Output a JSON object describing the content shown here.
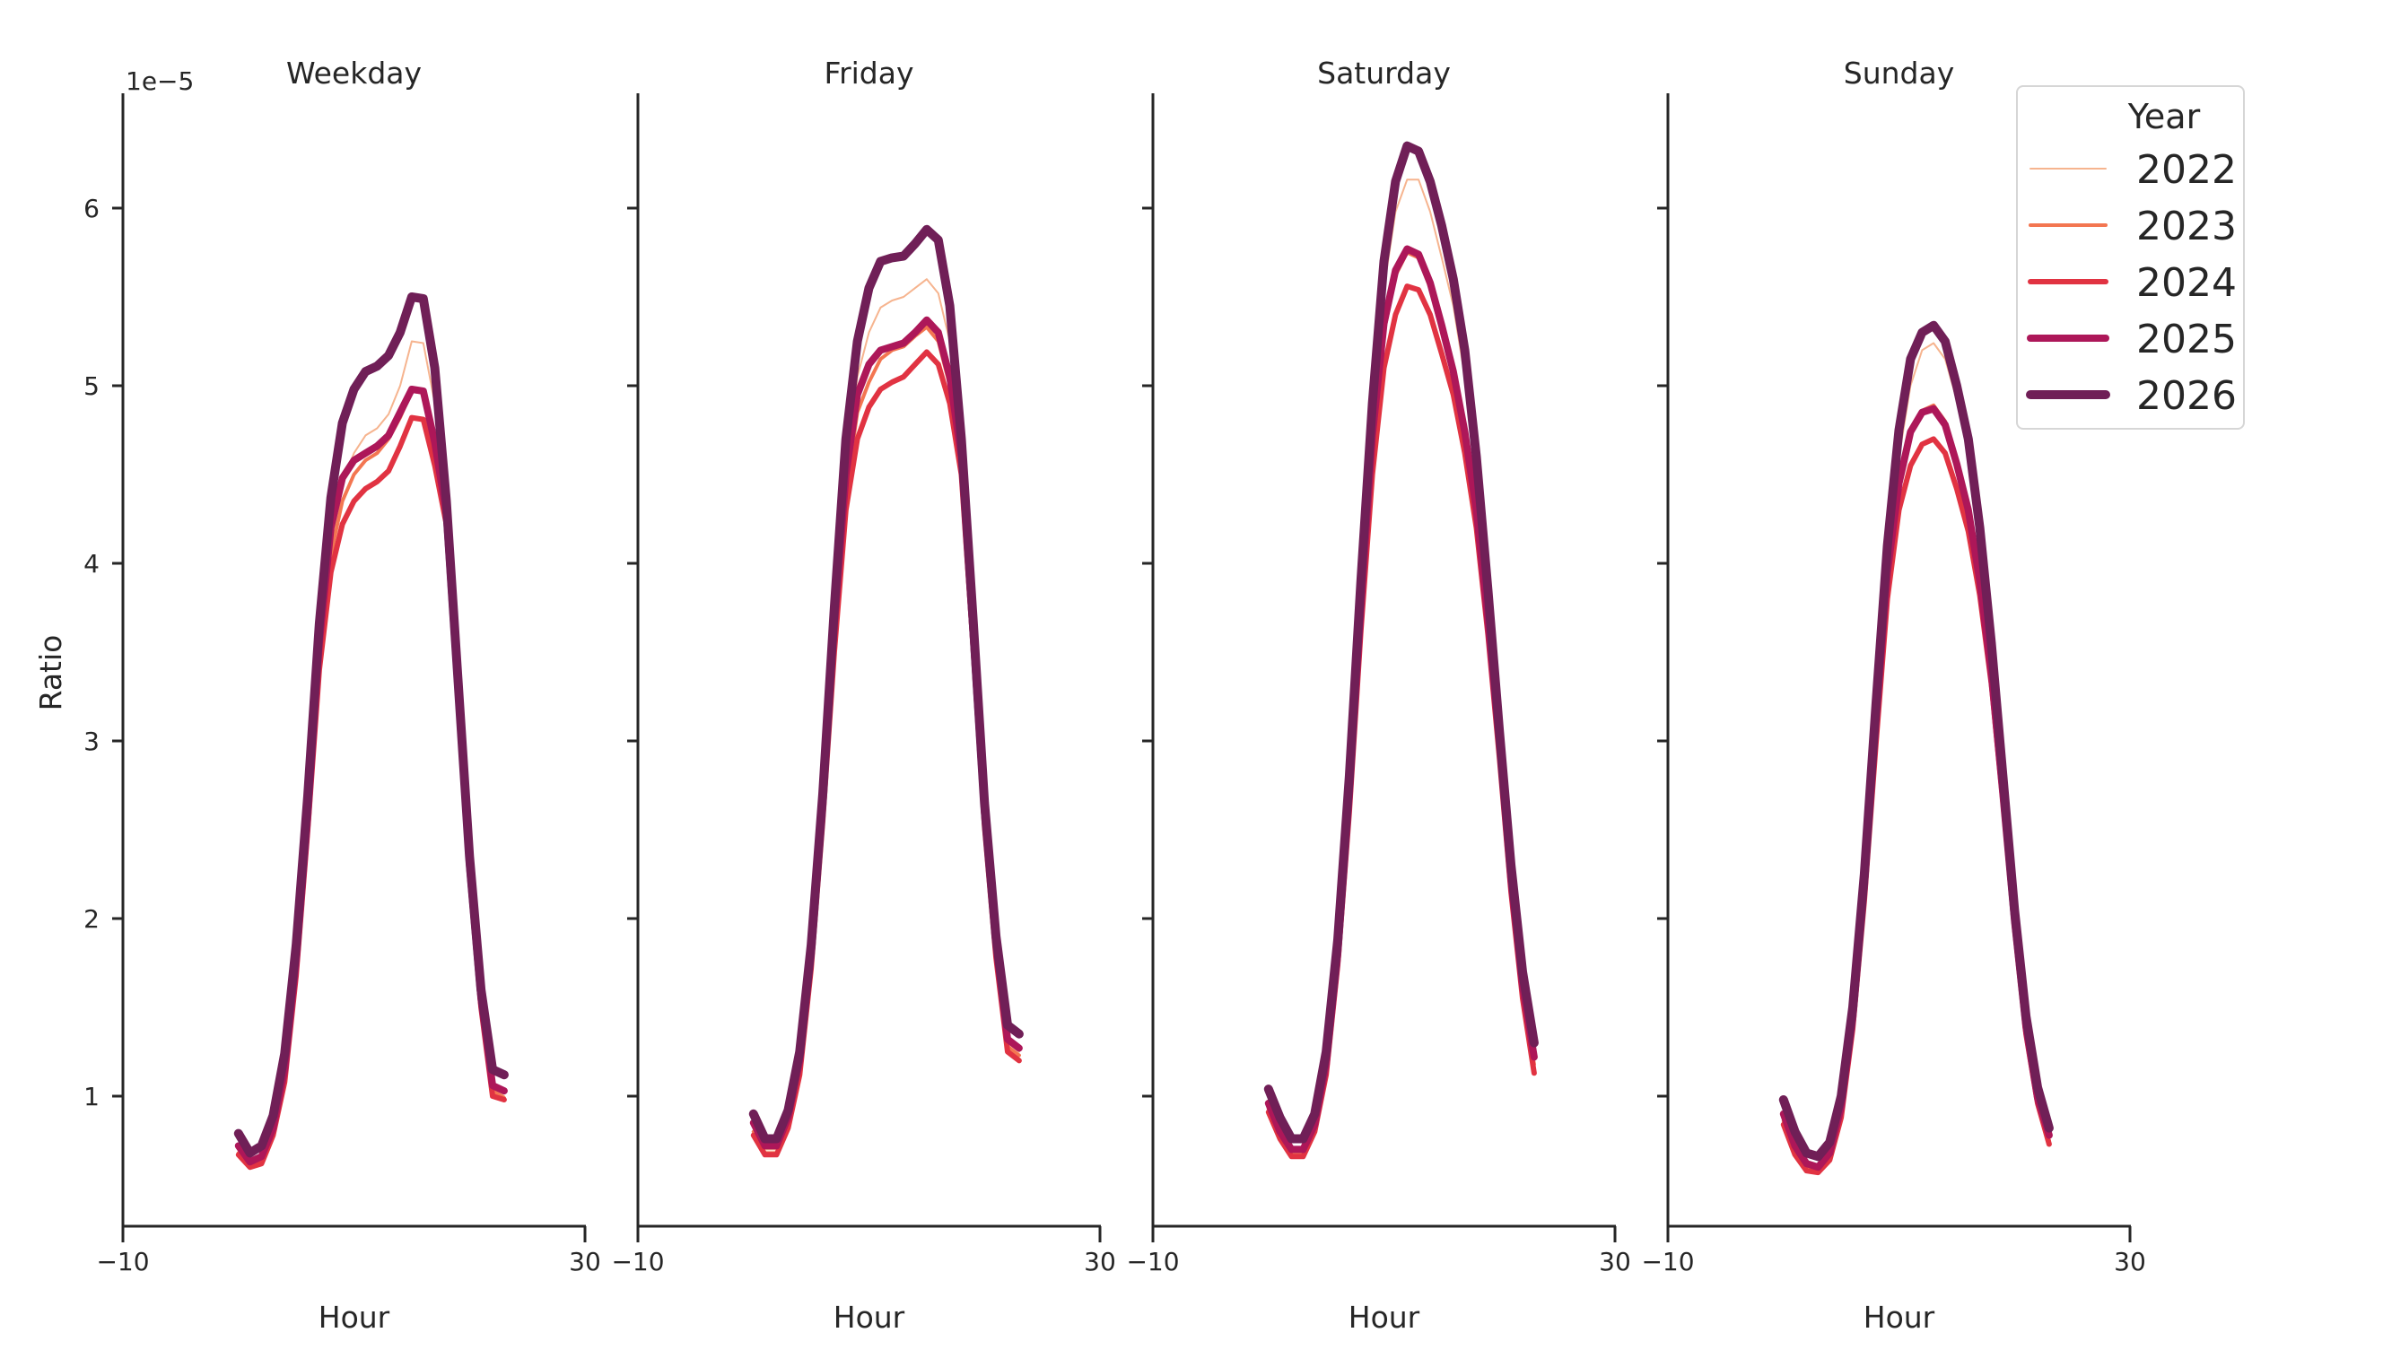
{
  "chart_data": {
    "type": "line",
    "layout": "facet-columns",
    "ylabel": "Ratio",
    "xlabel": "Hour",
    "y_offset_label": "1e−5",
    "y_scale_factor": 1e-05,
    "xlim": [
      -10,
      30
    ],
    "ylim": [
      0.27,
      6.65
    ],
    "xticks": [
      -10,
      30
    ],
    "yticks": [
      1,
      2,
      3,
      4,
      5,
      6
    ],
    "grid": false,
    "legend": {
      "title": "Year",
      "position": "upper right",
      "entries": [
        {
          "label": "2022",
          "color": "#f6b48f",
          "width": 2
        },
        {
          "label": "2023",
          "color": "#f37651",
          "width": 4
        },
        {
          "label": "2024",
          "color": "#e13342",
          "width": 6
        },
        {
          "label": "2025",
          "color": "#ad1759",
          "width": 8
        },
        {
          "label": "2026",
          "color": "#701f57",
          "width": 10
        }
      ]
    },
    "x": [
      0,
      1,
      2,
      3,
      4,
      5,
      6,
      7,
      8,
      9,
      10,
      11,
      12,
      13,
      14,
      15,
      16,
      17,
      18,
      19,
      20,
      21,
      22,
      23
    ],
    "panels": [
      {
        "title": "Weekday",
        "series": [
          {
            "name": "2022",
            "values": [
              0.7,
              0.62,
              0.64,
              0.8,
              1.12,
              1.72,
              2.55,
              3.5,
              4.1,
              4.45,
              4.62,
              4.72,
              4.76,
              4.84,
              5.0,
              5.25,
              5.24,
              4.9,
              4.3,
              3.3,
              2.3,
              1.55,
              1.05,
              1.0
            ]
          },
          {
            "name": "2023",
            "values": [
              0.68,
              0.61,
              0.63,
              0.79,
              1.1,
              1.7,
              2.52,
              3.45,
              4.05,
              4.35,
              4.5,
              4.58,
              4.62,
              4.7,
              4.82,
              4.97,
              4.96,
              4.65,
              4.25,
              3.28,
              2.28,
              1.53,
              1.03,
              0.99
            ]
          },
          {
            "name": "2024",
            "values": [
              0.67,
              0.6,
              0.62,
              0.78,
              1.08,
              1.68,
              2.5,
              3.4,
              3.95,
              4.22,
              4.35,
              4.42,
              4.46,
              4.52,
              4.66,
              4.82,
              4.81,
              4.55,
              4.22,
              3.25,
              2.25,
              1.5,
              1.0,
              0.98
            ]
          },
          {
            "name": "2025",
            "values": [
              0.72,
              0.63,
              0.66,
              0.82,
              1.15,
              1.76,
              2.58,
              3.55,
              4.2,
              4.48,
              4.58,
              4.62,
              4.66,
              4.72,
              4.85,
              4.98,
              4.97,
              4.68,
              4.28,
              3.3,
              2.3,
              1.55,
              1.06,
              1.03
            ]
          },
          {
            "name": "2026",
            "values": [
              0.79,
              0.68,
              0.72,
              0.89,
              1.24,
              1.85,
              2.69,
              3.66,
              4.37,
              4.79,
              4.98,
              5.08,
              5.11,
              5.17,
              5.3,
              5.5,
              5.49,
              5.1,
              4.35,
              3.35,
              2.35,
              1.6,
              1.15,
              1.12
            ]
          }
        ]
      },
      {
        "title": "Friday",
        "series": [
          {
            "name": "2022",
            "values": [
              0.82,
              0.7,
              0.7,
              0.86,
              1.18,
              1.78,
              2.62,
              3.62,
              4.55,
              5.05,
              5.3,
              5.44,
              5.48,
              5.5,
              5.55,
              5.6,
              5.52,
              5.25,
              4.62,
              3.62,
              2.58,
              1.82,
              1.3,
              1.25
            ]
          },
          {
            "name": "2023",
            "values": [
              0.8,
              0.68,
              0.68,
              0.84,
              1.15,
              1.75,
              2.58,
              3.55,
              4.4,
              4.85,
              5.02,
              5.15,
              5.2,
              5.22,
              5.28,
              5.33,
              5.25,
              5.0,
              4.55,
              3.58,
              2.55,
              1.8,
              1.28,
              1.23
            ]
          },
          {
            "name": "2024",
            "values": [
              0.78,
              0.67,
              0.67,
              0.82,
              1.12,
              1.72,
              2.55,
              3.5,
              4.3,
              4.7,
              4.88,
              4.98,
              5.02,
              5.05,
              5.12,
              5.19,
              5.12,
              4.9,
              4.5,
              3.55,
              2.52,
              1.78,
              1.25,
              1.2
            ]
          },
          {
            "name": "2025",
            "values": [
              0.85,
              0.72,
              0.72,
              0.88,
              1.2,
              1.8,
              2.65,
              3.65,
              4.5,
              4.95,
              5.12,
              5.2,
              5.22,
              5.24,
              5.3,
              5.37,
              5.3,
              5.05,
              4.6,
              3.62,
              2.6,
              1.85,
              1.32,
              1.27
            ]
          },
          {
            "name": "2026",
            "values": [
              0.9,
              0.76,
              0.76,
              0.92,
              1.25,
              1.85,
              2.7,
              3.75,
              4.7,
              5.25,
              5.55,
              5.7,
              5.72,
              5.73,
              5.8,
              5.88,
              5.82,
              5.45,
              4.7,
              3.7,
              2.65,
              1.9,
              1.4,
              1.35
            ]
          }
        ]
      },
      {
        "title": "Saturday",
        "series": [
          {
            "name": "2022",
            "values": [
              0.95,
              0.8,
              0.7,
              0.7,
              0.84,
              1.18,
              1.8,
              2.7,
              3.78,
              4.78,
              5.55,
              5.98,
              6.16,
              6.16,
              5.98,
              5.72,
              5.45,
              5.05,
              4.5,
              3.78,
              3.0,
              2.25,
              1.65,
              1.25
            ]
          },
          {
            "name": "2023",
            "values": [
              0.93,
              0.78,
              0.68,
              0.68,
              0.82,
              1.15,
              1.77,
              2.65,
              3.7,
              4.62,
              5.3,
              5.62,
              5.75,
              5.72,
              5.55,
              5.3,
              5.05,
              4.7,
              4.25,
              3.65,
              2.95,
              2.2,
              1.6,
              1.18
            ]
          },
          {
            "name": "2024",
            "values": [
              0.91,
              0.76,
              0.66,
              0.66,
              0.8,
              1.12,
              1.74,
              2.6,
              3.62,
              4.5,
              5.1,
              5.4,
              5.56,
              5.54,
              5.4,
              5.18,
              4.95,
              4.62,
              4.2,
              3.6,
              2.9,
              2.15,
              1.55,
              1.13
            ]
          },
          {
            "name": "2025",
            "values": [
              0.96,
              0.8,
              0.7,
              0.7,
              0.84,
              1.18,
              1.8,
              2.7,
              3.75,
              4.72,
              5.35,
              5.65,
              5.77,
              5.74,
              5.58,
              5.34,
              5.08,
              4.74,
              4.3,
              3.68,
              2.98,
              2.22,
              1.62,
              1.22
            ]
          },
          {
            "name": "2026",
            "values": [
              1.04,
              0.88,
              0.76,
              0.76,
              0.9,
              1.25,
              1.88,
              2.8,
              3.9,
              4.9,
              5.7,
              6.15,
              6.35,
              6.32,
              6.15,
              5.9,
              5.6,
              5.2,
              4.6,
              3.85,
              3.05,
              2.3,
              1.7,
              1.3
            ]
          }
        ]
      },
      {
        "title": "Sunday",
        "series": [
          {
            "name": "2022",
            "values": [
              0.88,
              0.7,
              0.6,
              0.58,
              0.66,
              0.92,
              1.42,
              2.15,
              3.08,
              3.98,
              4.6,
              5.0,
              5.2,
              5.24,
              5.15,
              4.92,
              4.6,
              4.1,
              3.48,
              2.75,
              2.0,
              1.4,
              1.0,
              0.78
            ]
          },
          {
            "name": "2023",
            "values": [
              0.86,
              0.68,
              0.59,
              0.57,
              0.65,
              0.9,
              1.4,
              2.12,
              3.02,
              3.88,
              4.42,
              4.72,
              4.86,
              4.89,
              4.8,
              4.58,
              4.32,
              3.92,
              3.4,
              2.7,
              1.98,
              1.38,
              0.98,
              0.75
            ]
          },
          {
            "name": "2024",
            "values": [
              0.84,
              0.67,
              0.58,
              0.57,
              0.64,
              0.88,
              1.38,
              2.1,
              2.98,
              3.8,
              4.3,
              4.55,
              4.67,
              4.7,
              4.62,
              4.42,
              4.18,
              3.82,
              3.32,
              2.66,
              1.95,
              1.35,
              0.96,
              0.73
            ]
          },
          {
            "name": "2025",
            "values": [
              0.9,
              0.72,
              0.62,
              0.6,
              0.68,
              0.94,
              1.44,
              2.18,
              3.1,
              3.95,
              4.45,
              4.74,
              4.85,
              4.87,
              4.78,
              4.56,
              4.3,
              3.9,
              3.38,
              2.7,
              1.99,
              1.39,
              0.99,
              0.78
            ]
          },
          {
            "name": "2026",
            "values": [
              0.98,
              0.8,
              0.68,
              0.66,
              0.74,
              1.0,
              1.5,
              2.25,
              3.2,
              4.1,
              4.75,
              5.15,
              5.3,
              5.34,
              5.25,
              5.0,
              4.7,
              4.2,
              3.55,
              2.8,
              2.05,
              1.45,
              1.05,
              0.82
            ]
          }
        ]
      }
    ]
  },
  "style": {
    "axis_color": "#262626",
    "background": "#ffffff",
    "legend_border": "#d6d6d6"
  }
}
